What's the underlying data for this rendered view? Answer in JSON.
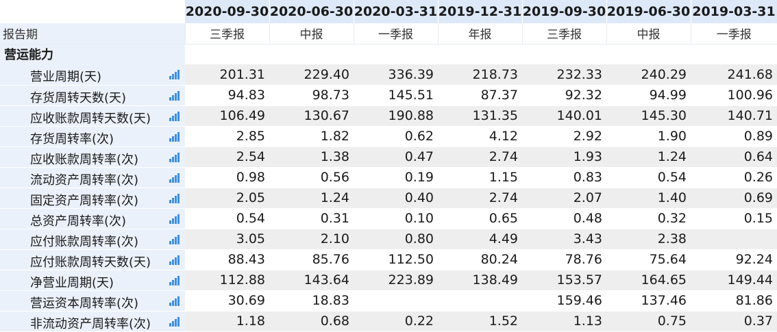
{
  "dates": [
    "2020-09-30",
    "2020-06-30",
    "2020-03-31",
    "2019-12-31",
    "2019-09-30",
    "2019-06-30",
    "2019-03-31"
  ],
  "period_row": {
    "label": "报告期",
    "values": [
      "三季报",
      "中报",
      "一季报",
      "年报",
      "三季报",
      "中报",
      "一季报"
    ]
  },
  "section": {
    "title": "营运能力"
  },
  "rows": [
    {
      "label": "营业周期(天)",
      "values": [
        "201.31",
        "229.40",
        "336.39",
        "218.73",
        "232.33",
        "240.29",
        "241.68"
      ]
    },
    {
      "label": "存货周转天数(天)",
      "values": [
        "94.83",
        "98.73",
        "145.51",
        "87.37",
        "92.32",
        "94.99",
        "100.96"
      ]
    },
    {
      "label": "应收账款周转天数(天)",
      "values": [
        "106.49",
        "130.67",
        "190.88",
        "131.35",
        "140.01",
        "145.30",
        "140.71"
      ]
    },
    {
      "label": "存货周转率(次)",
      "values": [
        "2.85",
        "1.82",
        "0.62",
        "4.12",
        "2.92",
        "1.90",
        "0.89"
      ]
    },
    {
      "label": "应收账款周转率(次)",
      "values": [
        "2.54",
        "1.38",
        "0.47",
        "2.74",
        "1.93",
        "1.24",
        "0.64"
      ]
    },
    {
      "label": "流动资产周转率(次)",
      "values": [
        "0.98",
        "0.56",
        "0.19",
        "1.15",
        "0.83",
        "0.54",
        "0.26"
      ]
    },
    {
      "label": "固定资产周转率(次)",
      "values": [
        "2.05",
        "1.24",
        "0.40",
        "2.74",
        "2.07",
        "1.40",
        "0.69"
      ]
    },
    {
      "label": "总资产周转率(次)",
      "values": [
        "0.54",
        "0.31",
        "0.10",
        "0.65",
        "0.48",
        "0.32",
        "0.15"
      ]
    },
    {
      "label": "应付账款周转率(次)",
      "values": [
        "3.05",
        "2.10",
        "0.80",
        "4.49",
        "3.43",
        "2.38",
        ""
      ]
    },
    {
      "label": "应付账款周转天数(天)",
      "values": [
        "88.43",
        "85.76",
        "112.50",
        "80.24",
        "78.76",
        "75.64",
        "92.24"
      ]
    },
    {
      "label": "净营业周期(天)",
      "values": [
        "112.88",
        "143.64",
        "223.89",
        "138.49",
        "153.57",
        "164.65",
        "149.44"
      ]
    },
    {
      "label": "营运资本周转率(次)",
      "values": [
        "30.69",
        "18.83",
        "",
        "",
        "159.46",
        "137.46",
        "81.86"
      ]
    },
    {
      "label": "非流动资产周转率(次)",
      "values": [
        "1.18",
        "0.68",
        "0.22",
        "1.52",
        "1.13",
        "0.75",
        "0.37"
      ]
    }
  ],
  "icons": {
    "row_chart": "bar-chart-icon"
  },
  "colors": {
    "header_bg": "#dde9f9",
    "label_bg": "#ebf1fa",
    "stripe_bg": "#eeeeee",
    "icon": "#3d8fe0"
  }
}
